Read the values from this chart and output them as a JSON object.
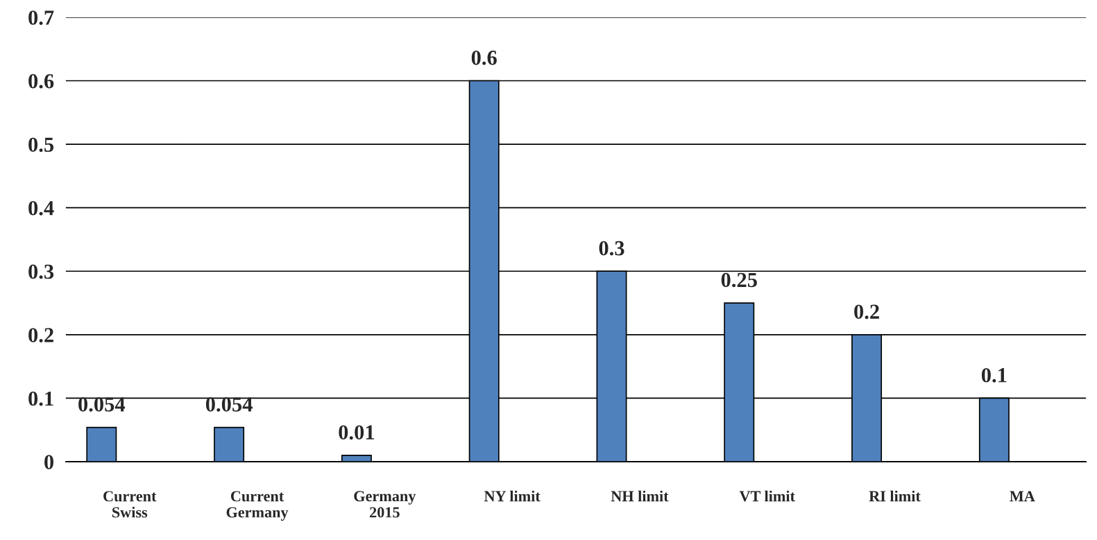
{
  "chart_data": {
    "type": "bar",
    "categories": [
      "Current\nSwiss",
      "Current\nGermany",
      "Germany\n2015",
      "NY limit",
      "NH limit",
      "VT limit",
      "RI limit",
      "MA"
    ],
    "values": [
      0.054,
      0.054,
      0.01,
      0.6,
      0.3,
      0.25,
      0.2,
      0.1
    ],
    "color": "#4f81bd",
    "ylim": [
      0,
      0.7
    ],
    "yticks": [
      0,
      0.1,
      0.2,
      0.3,
      0.4,
      0.5,
      0.6,
      0.7
    ],
    "grid": "y",
    "data_labels": true
  }
}
